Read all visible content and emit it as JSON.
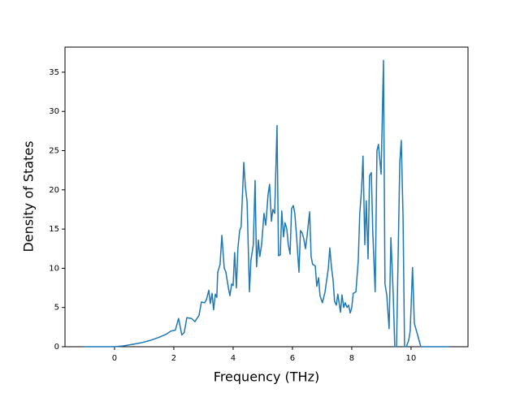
{
  "chart_data": {
    "type": "line",
    "xlabel": "Frequency (THz)",
    "ylabel": "Density of States",
    "x": [
      -1.05,
      -0.5,
      0,
      0.3,
      0.6,
      0.9,
      1.2,
      1.5,
      1.75,
      1.9,
      2.05,
      2.16,
      2.27,
      2.35,
      2.44,
      2.6,
      2.71,
      2.85,
      2.93,
      3.04,
      3.1,
      3.18,
      3.23,
      3.29,
      3.34,
      3.4,
      3.45,
      3.48,
      3.56,
      3.62,
      3.7,
      3.75,
      3.84,
      3.89,
      3.95,
      4.0,
      4.05,
      4.11,
      4.16,
      4.22,
      4.27,
      4.36,
      4.41,
      4.47,
      4.55,
      4.6,
      4.68,
      4.74,
      4.79,
      4.85,
      4.9,
      4.96,
      5.04,
      5.1,
      5.18,
      5.23,
      5.29,
      5.34,
      5.4,
      5.48,
      5.53,
      5.59,
      5.64,
      5.7,
      5.75,
      5.81,
      5.86,
      5.92,
      5.97,
      6.03,
      6.08,
      6.14,
      6.22,
      6.27,
      6.33,
      6.38,
      6.44,
      6.49,
      6.58,
      6.63,
      6.68,
      6.77,
      6.82,
      6.88,
      6.93,
      7.01,
      7.1,
      7.21,
      7.26,
      7.32,
      7.37,
      7.42,
      7.48,
      7.53,
      7.62,
      7.67,
      7.73,
      7.78,
      7.84,
      7.89,
      7.95,
      8.0,
      8.05,
      8.14,
      8.22,
      8.27,
      8.33,
      8.38,
      8.44,
      8.49,
      8.55,
      8.6,
      8.66,
      8.71,
      8.79,
      8.85,
      8.9,
      8.99,
      9.07,
      9.12,
      9.18,
      9.26,
      9.32,
      9.4,
      9.45,
      9.51,
      9.56,
      9.62,
      9.67,
      9.73,
      9.78,
      9.84,
      9.92,
      9.97,
      10.05,
      10.11,
      10.22,
      10.33,
      11.29
    ],
    "series": [
      {
        "color": "#1f77b4",
        "values": [
          0,
          0,
          0,
          0.1,
          0.3,
          0.5,
          0.8,
          1.2,
          1.6,
          2.0,
          2.1,
          3.6,
          1.5,
          1.8,
          3.7,
          3.6,
          3.2,
          4.0,
          5.7,
          5.6,
          6.0,
          7.2,
          5.5,
          6.8,
          4.7,
          6.7,
          6.3,
          9.5,
          10.5,
          14.2,
          10.0,
          9.6,
          7.5,
          6.5,
          8.0,
          7.8,
          12.0,
          7.5,
          12.5,
          14.8,
          15.3,
          23.5,
          20.5,
          18.5,
          7.0,
          11.0,
          13.0,
          21.2,
          10.2,
          13.6,
          11.5,
          13.0,
          17.0,
          15.5,
          19.5,
          20.7,
          16.0,
          17.5,
          17.0,
          28.2,
          11.6,
          11.7,
          17.3,
          14.0,
          15.8,
          15.0,
          13.0,
          11.8,
          17.6,
          18.0,
          17.0,
          14.0,
          9.5,
          14.8,
          14.5,
          13.8,
          12.5,
          14.0,
          17.2,
          11.5,
          10.5,
          10.3,
          7.7,
          8.8,
          6.5,
          5.6,
          7.0,
          10.0,
          12.6,
          10.0,
          8.5,
          5.8,
          5.3,
          6.7,
          4.4,
          6.6,
          5.0,
          5.6,
          5.0,
          5.3,
          4.3,
          5.0,
          6.8,
          7.0,
          11.0,
          17.0,
          20.0,
          24.3,
          13.0,
          18.6,
          11.2,
          21.8,
          22.2,
          14.5,
          7.0,
          25.0,
          25.8,
          22.0,
          36.5,
          8.0,
          6.6,
          2.3,
          13.9,
          6.5,
          0,
          0,
          10.8,
          23.5,
          26.3,
          16.5,
          0,
          0,
          0.8,
          2.0,
          10.1,
          3.0,
          1.5,
          0,
          0
        ]
      }
    ],
    "xlim": [
      -1.67,
      11.92
    ],
    "xticks": [
      0,
      2,
      4,
      6,
      8,
      10
    ],
    "ylim": [
      0,
      38.2
    ],
    "yticks": [
      0,
      5,
      10,
      15,
      20,
      25,
      30,
      35
    ]
  }
}
